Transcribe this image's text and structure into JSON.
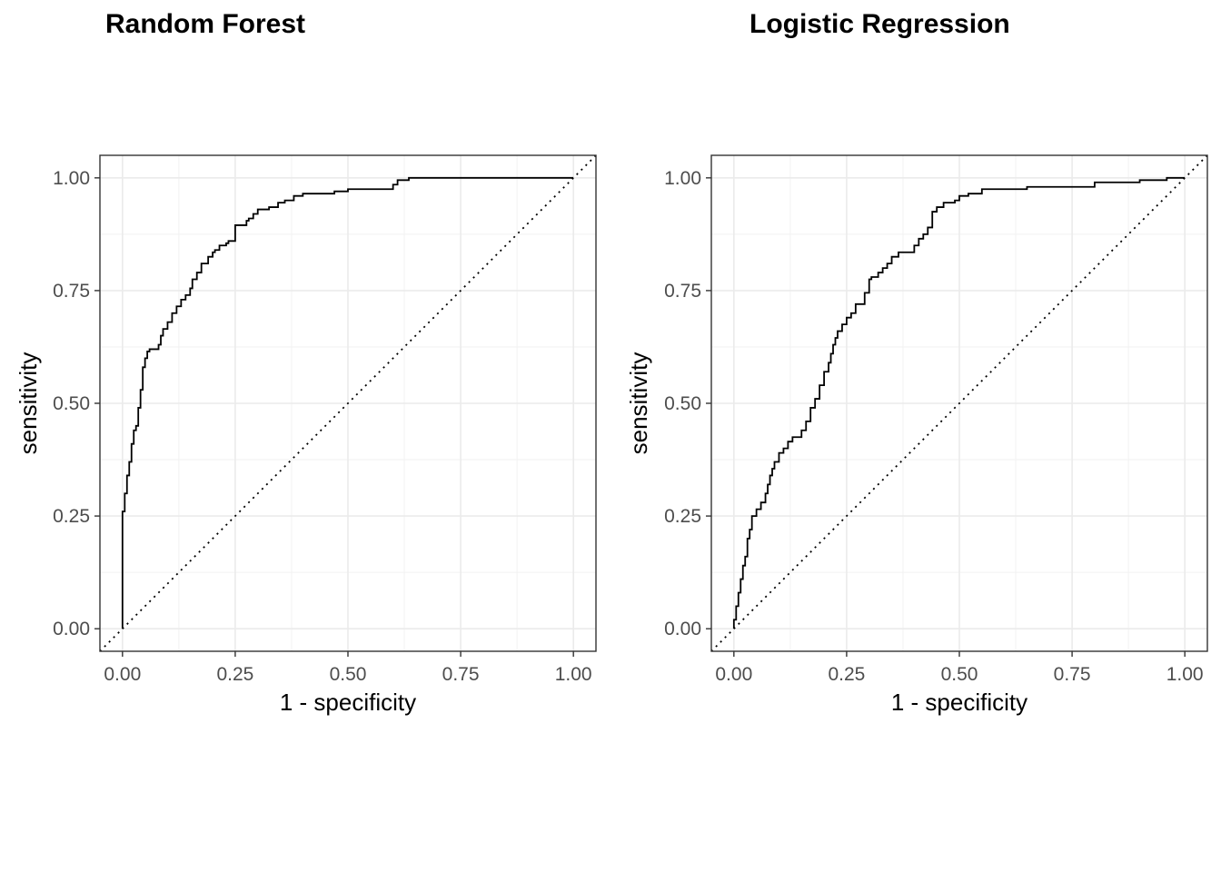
{
  "chart_data": [
    {
      "type": "line",
      "title": "Random Forest",
      "xlabel": "1 - specificity",
      "ylabel": "sensitivity",
      "xlim": [
        0,
        1
      ],
      "ylim": [
        0,
        1
      ],
      "x_ticks": [
        "0.00",
        "0.25",
        "0.50",
        "0.75",
        "1.00"
      ],
      "y_ticks": [
        "0.00",
        "0.25",
        "0.50",
        "0.75",
        "1.00"
      ],
      "grid": true,
      "reference_line": "diagonal",
      "series": [
        {
          "x": [
            0,
            0,
            0.005,
            0.005,
            0.01,
            0.01,
            0.015,
            0.015,
            0.02,
            0.02,
            0.025,
            0.025,
            0.03,
            0.03,
            0.035,
            0.035,
            0.04,
            0.04,
            0.045,
            0.045,
            0.05,
            0.05,
            0.055,
            0.055,
            0.06,
            0.06,
            0.08,
            0.08,
            0.085,
            0.085,
            0.09,
            0.09,
            0.1,
            0.1,
            0.11,
            0.11,
            0.12,
            0.12,
            0.13,
            0.13,
            0.14,
            0.14,
            0.15,
            0.15,
            0.155,
            0.155,
            0.165,
            0.165,
            0.175,
            0.175,
            0.19,
            0.19,
            0.2,
            0.2,
            0.205,
            0.205,
            0.215,
            0.215,
            0.23,
            0.23,
            0.235,
            0.235,
            0.25,
            0.25,
            0.275,
            0.275,
            0.28,
            0.28,
            0.29,
            0.29,
            0.3,
            0.3,
            0.325,
            0.325,
            0.345,
            0.345,
            0.36,
            0.36,
            0.38,
            0.38,
            0.4,
            0.4,
            0.47,
            0.47,
            0.5,
            0.5,
            0.6,
            0.6,
            0.61,
            0.61,
            0.635,
            0.635,
            1.0
          ],
          "y": [
            0,
            0.26,
            0.26,
            0.3,
            0.3,
            0.34,
            0.34,
            0.37,
            0.37,
            0.41,
            0.41,
            0.44,
            0.44,
            0.45,
            0.45,
            0.49,
            0.49,
            0.53,
            0.53,
            0.58,
            0.58,
            0.6,
            0.6,
            0.615,
            0.615,
            0.62,
            0.62,
            0.63,
            0.63,
            0.65,
            0.65,
            0.665,
            0.665,
            0.68,
            0.68,
            0.7,
            0.7,
            0.715,
            0.715,
            0.73,
            0.73,
            0.74,
            0.74,
            0.755,
            0.755,
            0.775,
            0.775,
            0.79,
            0.79,
            0.81,
            0.81,
            0.825,
            0.825,
            0.835,
            0.835,
            0.84,
            0.84,
            0.85,
            0.85,
            0.855,
            0.855,
            0.86,
            0.86,
            0.895,
            0.895,
            0.905,
            0.905,
            0.91,
            0.91,
            0.92,
            0.92,
            0.93,
            0.93,
            0.935,
            0.935,
            0.945,
            0.945,
            0.95,
            0.95,
            0.96,
            0.96,
            0.965,
            0.965,
            0.97,
            0.97,
            0.975,
            0.975,
            0.985,
            0.985,
            0.995,
            0.995,
            1.0,
            1.0
          ]
        }
      ]
    },
    {
      "type": "line",
      "title": "Logistic Regression",
      "xlabel": "1 - specificity",
      "ylabel": "sensitivity",
      "xlim": [
        0,
        1
      ],
      "ylim": [
        0,
        1
      ],
      "x_ticks": [
        "0.00",
        "0.25",
        "0.50",
        "0.75",
        "1.00"
      ],
      "y_ticks": [
        "0.00",
        "0.25",
        "0.50",
        "0.75",
        "1.00"
      ],
      "grid": true,
      "reference_line": "diagonal",
      "series": [
        {
          "x": [
            0,
            0,
            0.005,
            0.005,
            0.01,
            0.01,
            0.015,
            0.015,
            0.02,
            0.02,
            0.025,
            0.025,
            0.03,
            0.03,
            0.035,
            0.035,
            0.04,
            0.04,
            0.05,
            0.05,
            0.06,
            0.06,
            0.07,
            0.07,
            0.075,
            0.075,
            0.08,
            0.08,
            0.085,
            0.085,
            0.09,
            0.09,
            0.1,
            0.1,
            0.11,
            0.11,
            0.12,
            0.12,
            0.13,
            0.13,
            0.15,
            0.15,
            0.16,
            0.16,
            0.17,
            0.17,
            0.18,
            0.18,
            0.19,
            0.19,
            0.2,
            0.2,
            0.21,
            0.21,
            0.215,
            0.215,
            0.22,
            0.22,
            0.225,
            0.225,
            0.23,
            0.23,
            0.24,
            0.24,
            0.25,
            0.25,
            0.26,
            0.26,
            0.27,
            0.27,
            0.29,
            0.29,
            0.3,
            0.3,
            0.305,
            0.305,
            0.32,
            0.32,
            0.33,
            0.33,
            0.34,
            0.34,
            0.35,
            0.35,
            0.365,
            0.365,
            0.4,
            0.4,
            0.41,
            0.41,
            0.42,
            0.42,
            0.43,
            0.43,
            0.44,
            0.44,
            0.45,
            0.45,
            0.465,
            0.465,
            0.49,
            0.49,
            0.5,
            0.5,
            0.52,
            0.52,
            0.55,
            0.55,
            0.65,
            0.65,
            0.8,
            0.8,
            0.9,
            0.9,
            0.96,
            0.96,
            1.0
          ],
          "y": [
            0,
            0.02,
            0.02,
            0.05,
            0.05,
            0.08,
            0.08,
            0.11,
            0.11,
            0.14,
            0.14,
            0.16,
            0.16,
            0.2,
            0.2,
            0.22,
            0.22,
            0.25,
            0.25,
            0.265,
            0.265,
            0.28,
            0.28,
            0.3,
            0.3,
            0.32,
            0.32,
            0.34,
            0.34,
            0.355,
            0.355,
            0.37,
            0.37,
            0.39,
            0.39,
            0.4,
            0.4,
            0.415,
            0.415,
            0.425,
            0.425,
            0.44,
            0.44,
            0.46,
            0.46,
            0.49,
            0.49,
            0.51,
            0.51,
            0.54,
            0.54,
            0.57,
            0.57,
            0.59,
            0.59,
            0.61,
            0.61,
            0.63,
            0.63,
            0.645,
            0.645,
            0.66,
            0.66,
            0.675,
            0.675,
            0.69,
            0.69,
            0.7,
            0.7,
            0.72,
            0.72,
            0.745,
            0.745,
            0.775,
            0.775,
            0.78,
            0.78,
            0.79,
            0.79,
            0.8,
            0.8,
            0.81,
            0.81,
            0.825,
            0.825,
            0.835,
            0.835,
            0.85,
            0.85,
            0.865,
            0.865,
            0.875,
            0.875,
            0.89,
            0.89,
            0.925,
            0.925,
            0.935,
            0.935,
            0.945,
            0.945,
            0.95,
            0.95,
            0.96,
            0.96,
            0.965,
            0.965,
            0.975,
            0.975,
            0.98,
            0.98,
            0.99,
            0.99,
            0.995,
            0.995,
            1.0,
            1.0
          ]
        }
      ]
    }
  ]
}
